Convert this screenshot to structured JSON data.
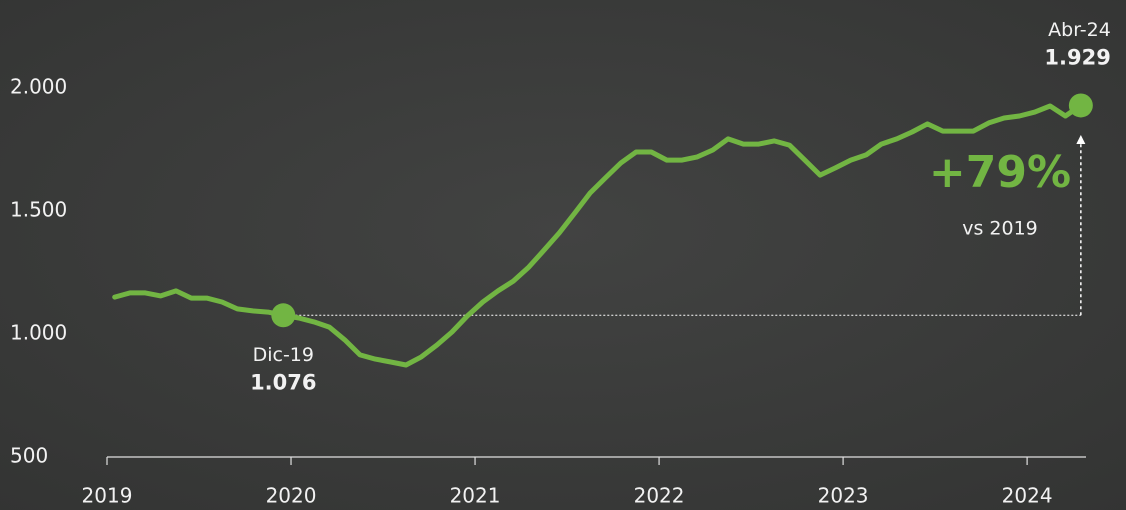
{
  "chart_data": {
    "type": "line",
    "x": [
      2019.042,
      2019.125,
      2019.208,
      2019.292,
      2019.375,
      2019.458,
      2019.542,
      2019.625,
      2019.708,
      2019.792,
      2019.875,
      2019.958,
      2020.042,
      2020.125,
      2020.208,
      2020.292,
      2020.375,
      2020.458,
      2020.542,
      2020.625,
      2020.708,
      2020.792,
      2020.875,
      2020.958,
      2021.042,
      2021.125,
      2021.208,
      2021.292,
      2021.375,
      2021.458,
      2021.542,
      2021.625,
      2021.708,
      2021.792,
      2021.875,
      2021.958,
      2022.042,
      2022.125,
      2022.208,
      2022.292,
      2022.375,
      2022.458,
      2022.542,
      2022.625,
      2022.708,
      2022.792,
      2022.875,
      2022.958,
      2023.042,
      2023.125,
      2023.208,
      2023.292,
      2023.375,
      2023.458,
      2023.542,
      2023.625,
      2023.708,
      2023.792,
      2023.875,
      2023.958,
      2024.042,
      2024.125,
      2024.208,
      2024.292
    ],
    "series": [
      {
        "color": "#72b543",
        "values": [
          1150,
          1167,
          1167,
          1155,
          1175,
          1146,
          1146,
          1130,
          1102,
          1094,
          1089,
          1076,
          1065,
          1049,
          1028,
          976,
          915,
          898,
          886,
          874,
          907,
          955,
          1008,
          1073,
          1130,
          1175,
          1215,
          1272,
          1341,
          1411,
          1492,
          1573,
          1634,
          1695,
          1740,
          1740,
          1707,
          1707,
          1720,
          1748,
          1793,
          1772,
          1772,
          1785,
          1768,
          1707,
          1646,
          1675,
          1707,
          1728,
          1772,
          1793,
          1821,
          1854,
          1825,
          1825,
          1825,
          1858,
          1878,
          1886,
          1902,
          1927,
          1886,
          1929
        ],
        "point_labels": [
          null,
          null,
          null,
          null,
          null,
          null,
          null,
          null,
          null,
          null,
          null,
          "Dic-19",
          null,
          null,
          null,
          null,
          null,
          null,
          null,
          null,
          null,
          null,
          null,
          null,
          null,
          null,
          null,
          null,
          null,
          null,
          null,
          null,
          null,
          null,
          null,
          null,
          null,
          null,
          null,
          null,
          null,
          null,
          null,
          null,
          null,
          null,
          null,
          null,
          null,
          null,
          null,
          null,
          null,
          null,
          null,
          null,
          null,
          null,
          null,
          null,
          null,
          null,
          null,
          "Abr-24"
        ],
        "value_labels": [
          null,
          null,
          null,
          null,
          null,
          null,
          null,
          null,
          null,
          null,
          null,
          "1.076",
          null,
          null,
          null,
          null,
          null,
          null,
          null,
          null,
          null,
          null,
          null,
          null,
          null,
          null,
          null,
          null,
          null,
          null,
          null,
          null,
          null,
          null,
          null,
          null,
          null,
          null,
          null,
          null,
          null,
          null,
          null,
          null,
          null,
          null,
          null,
          null,
          null,
          null,
          null,
          null,
          null,
          null,
          null,
          null,
          null,
          null,
          null,
          null,
          null,
          null,
          null,
          "1.929"
        ]
      }
    ],
    "annotation": {
      "change": "+79%",
      "note": "vs 2019"
    },
    "xlim": [
      2019,
      2024.32
    ],
    "xticks": [
      2019,
      2020,
      2021,
      2022,
      2023,
      2024
    ],
    "ylim": [
      500,
      2000
    ],
    "yticks": [
      500,
      {
        "value": 1000,
        "label": "1.000"
      },
      {
        "value": 1500,
        "label": "1.500"
      },
      {
        "value": 2000,
        "label": "2.000"
      }
    ]
  }
}
